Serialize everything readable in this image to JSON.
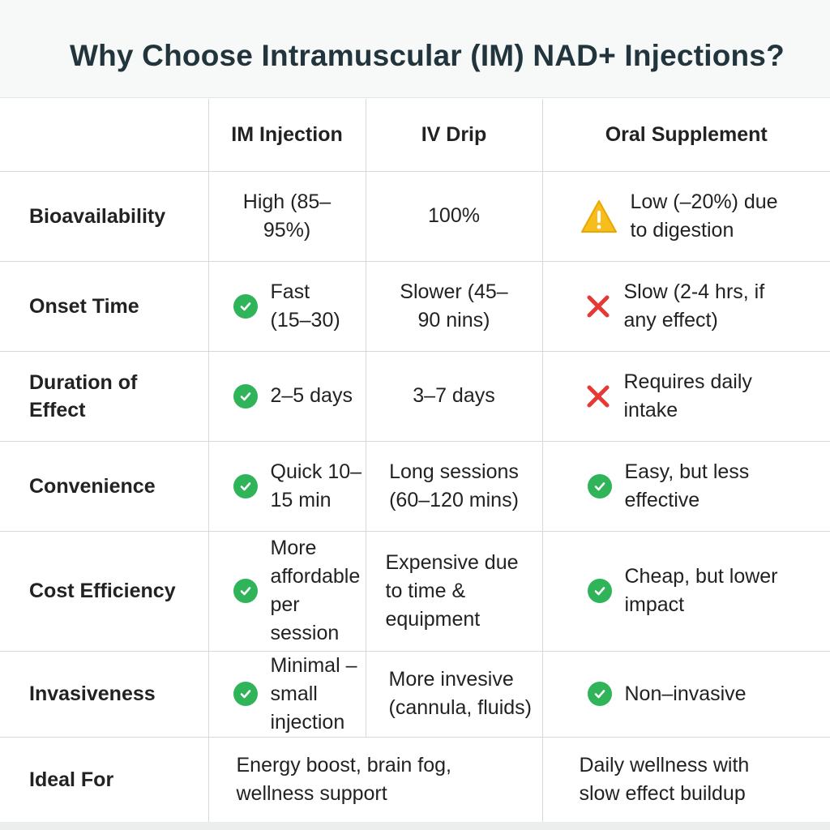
{
  "title": "Why Choose Intramuscular (IM) NAD+ Injections?",
  "columns": [
    "",
    "IM Injection",
    "IV Drip",
    "Oral Supplement"
  ],
  "rows": [
    {
      "label": "Bioavailability",
      "im": "High (85–95%)",
      "iv": "100%",
      "oral": "Low (–20%) due to digestion",
      "im_icon": "",
      "oral_icon": "warning-icon"
    },
    {
      "label": "Onset Time",
      "im": "Fast (15–30)",
      "iv": "Slower (45–90 nins)",
      "oral": "Slow (2-4 hrs, if any effect)",
      "im_icon": "check-circle-icon",
      "oral_icon": "cross-icon"
    },
    {
      "label": "Duration of Effect",
      "im": "2–5 days",
      "iv": "3–7 days",
      "oral": "Requires daily intake",
      "im_icon": "check-circle-icon",
      "oral_icon": "cross-icon"
    },
    {
      "label": "Convenience",
      "im": "Quick 10–15 min",
      "iv": "Long sessions (60–120 mins)",
      "oral": "Easy, but less effective",
      "im_icon": "check-circle-icon",
      "oral_icon": "check-circle-icon"
    },
    {
      "label": "Cost Efficiency",
      "im": "More affordable per session",
      "iv": "Expensive due to time & equipment",
      "oral": "Cheap, but lower impact",
      "im_icon": "check-circle-icon",
      "oral_icon": "check-circle-icon"
    },
    {
      "label": "Invasiveness",
      "im": "Minimal – small injection",
      "iv": "More invesive (cannula, fluids)",
      "oral": "Non–invasive",
      "im_icon": "check-circle-icon",
      "oral_icon": "check-circle-icon"
    },
    {
      "label": "Ideal For",
      "im_iv_merged": "Energy boost, brain fog, wellness support",
      "oral": "Daily wellness with slow effect buildup"
    }
  ],
  "colors": {
    "check": "#2fb459",
    "cross": "#e53935",
    "warning": "#f5b800",
    "title": "#22353d",
    "grid": "#d6d9da"
  }
}
